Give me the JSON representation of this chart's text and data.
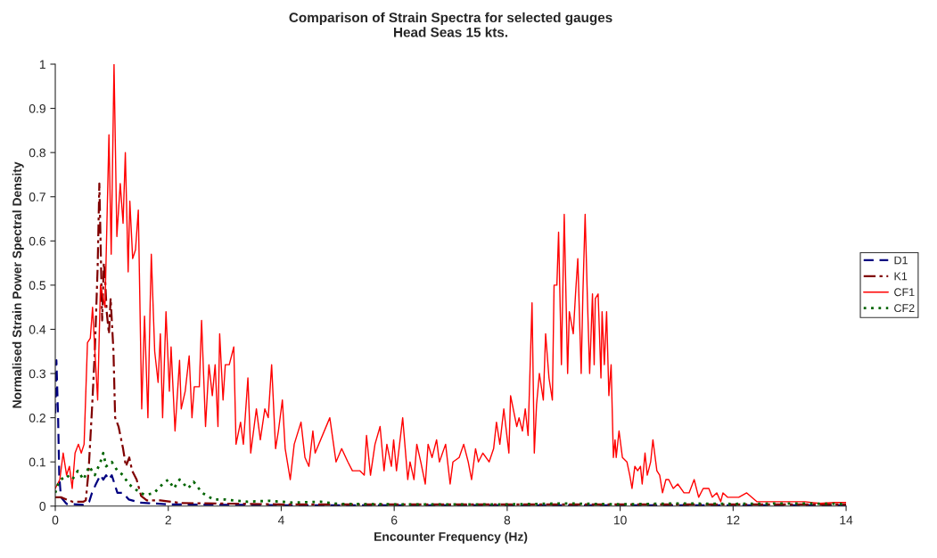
{
  "chart_data": {
    "type": "line",
    "title": "Comparison of Strain Spectra for selected gauges\nHead Seas 15 kts.",
    "xlabel": "Encounter Frequency (Hz)",
    "ylabel": "Normalised Strain Power Spectral Density",
    "xlim": [
      0,
      14
    ],
    "xticks": [
      0,
      2,
      4,
      6,
      8,
      10,
      12,
      14
    ],
    "ylim": [
      0,
      1
    ],
    "yticks": [
      0,
      {
        "value": 0.1,
        "label": "0.1"
      },
      {
        "value": 0.2,
        "label": "0.2"
      },
      {
        "value": 0.3,
        "label": "0.3"
      },
      {
        "value": 0.4,
        "label": "0.4"
      },
      {
        "value": 0.5,
        "label": "0.5"
      },
      {
        "value": 0.6,
        "label": "0.6"
      },
      {
        "value": 0.7,
        "label": "0.7"
      },
      {
        "value": 0.8,
        "label": "0.8"
      },
      {
        "value": 0.9,
        "label": "0.9"
      },
      1
    ],
    "grid": false,
    "legend": "right",
    "marker": "none",
    "series": [
      {
        "name": "D1",
        "color": "#000080",
        "line_style": "dashed",
        "x": [
          0,
          0.02,
          0.05,
          0.07,
          0.1,
          0.2,
          0.5,
          0.6,
          0.65,
          0.72,
          0.8,
          0.85,
          0.9,
          0.95,
          1.0,
          1.05,
          1.1,
          1.2,
          1.3,
          1.5,
          2,
          4,
          6,
          8,
          10,
          12,
          14
        ],
        "values": [
          0.21,
          0.33,
          0.2,
          0.07,
          0.02,
          0.005,
          0.003,
          0.01,
          0.03,
          0.05,
          0.07,
          0.06,
          0.07,
          0.06,
          0.07,
          0.05,
          0.03,
          0.03,
          0.015,
          0.008,
          0.004,
          0.002,
          0.002,
          0.002,
          0.002,
          0.002,
          0.002
        ]
      },
      {
        "name": "K1",
        "color": "#800000",
        "line_style": "dashdot",
        "x": [
          0,
          0.1,
          0.3,
          0.5,
          0.54,
          0.59,
          0.65,
          0.7,
          0.75,
          0.78,
          0.8,
          0.83,
          0.86,
          0.88,
          0.91,
          0.95,
          0.98,
          1.03,
          1.06,
          1.12,
          1.2,
          1.25,
          1.31,
          1.36,
          1.44,
          1.52,
          1.62,
          1.86,
          2.23,
          4,
          6,
          8,
          10,
          12,
          14
        ],
        "values": [
          0.02,
          0.02,
          0.01,
          0.01,
          0.013,
          0.08,
          0.22,
          0.35,
          0.54,
          0.73,
          0.61,
          0.42,
          0.55,
          0.52,
          0.44,
          0.39,
          0.47,
          0.35,
          0.2,
          0.18,
          0.13,
          0.09,
          0.11,
          0.08,
          0.06,
          0.023,
          0.013,
          0.013,
          0.007,
          0.004,
          0.004,
          0.004,
          0.004,
          0.004,
          0.004
        ]
      },
      {
        "name": "CF1",
        "color": "#ff0000",
        "line_style": "solid",
        "x": [
          0,
          0.08,
          0.14,
          0.2,
          0.25,
          0.3,
          0.35,
          0.41,
          0.46,
          0.51,
          0.57,
          0.62,
          0.66,
          0.71,
          0.75,
          0.8,
          0.88,
          0.95,
          0.99,
          1.04,
          1.09,
          1.15,
          1.2,
          1.24,
          1.29,
          1.32,
          1.37,
          1.42,
          1.47,
          1.53,
          1.58,
          1.64,
          1.68,
          1.7,
          1.76,
          1.82,
          1.86,
          1.9,
          1.96,
          2.02,
          2.05,
          2.12,
          2.2,
          2.23,
          2.3,
          2.37,
          2.42,
          2.46,
          2.55,
          2.59,
          2.66,
          2.72,
          2.78,
          2.83,
          2.88,
          2.91,
          2.97,
          3.01,
          3.08,
          3.16,
          3.2,
          3.28,
          3.33,
          3.41,
          3.46,
          3.56,
          3.63,
          3.71,
          3.77,
          3.83,
          3.9,
          3.95,
          4.02,
          4.07,
          4.16,
          4.23,
          4.35,
          4.42,
          4.49,
          4.56,
          4.6,
          4.86,
          4.97,
          5.07,
          5.18,
          5.26,
          5.39,
          5.47,
          5.51,
          5.58,
          5.66,
          5.75,
          5.82,
          5.87,
          5.95,
          5.99,
          6.04,
          6.15,
          6.24,
          6.28,
          6.35,
          6.4,
          6.47,
          6.55,
          6.6,
          6.67,
          6.75,
          6.8,
          6.91,
          6.99,
          7.04,
          7.15,
          7.23,
          7.31,
          7.37,
          7.44,
          7.49,
          7.57,
          7.68,
          7.76,
          7.81,
          7.87,
          7.94,
          8.03,
          8.06,
          8.17,
          8.21,
          8.27,
          8.32,
          8.37,
          8.44,
          8.48,
          8.52,
          8.57,
          8.64,
          8.68,
          8.74,
          8.8,
          8.83,
          8.88,
          8.91,
          8.96,
          9.01,
          9.07,
          9.1,
          9.17,
          9.21,
          9.25,
          9.31,
          9.34,
          9.38,
          9.42,
          9.46,
          9.51,
          9.54,
          9.56,
          9.61,
          9.66,
          9.68,
          9.72,
          9.76,
          9.8,
          9.84,
          9.88,
          9.91,
          9.93,
          9.98,
          10.04,
          10.12,
          10.17,
          10.21,
          10.26,
          10.31,
          10.36,
          10.39,
          10.44,
          10.48,
          10.54,
          10.58,
          10.65,
          10.7,
          10.75,
          10.81,
          10.86,
          10.94,
          11.02,
          11.13,
          11.22,
          11.31,
          11.39,
          11.47,
          11.57,
          11.63,
          11.71,
          11.78,
          11.82,
          11.9,
          11.99,
          12.1,
          12.24,
          12.42,
          12.74,
          12.95,
          13.27,
          13.53,
          13.8,
          14
        ],
        "values": [
          0.04,
          0.06,
          0.12,
          0.07,
          0.09,
          0.04,
          0.12,
          0.14,
          0.12,
          0.14,
          0.37,
          0.38,
          0.45,
          0.33,
          0.24,
          0.5,
          0.45,
          0.84,
          0.57,
          1.0,
          0.61,
          0.73,
          0.64,
          0.8,
          0.53,
          0.69,
          0.56,
          0.58,
          0.67,
          0.22,
          0.43,
          0.2,
          0.46,
          0.57,
          0.35,
          0.28,
          0.39,
          0.2,
          0.44,
          0.26,
          0.36,
          0.17,
          0.33,
          0.22,
          0.26,
          0.34,
          0.2,
          0.27,
          0.27,
          0.42,
          0.18,
          0.32,
          0.25,
          0.32,
          0.18,
          0.39,
          0.24,
          0.32,
          0.32,
          0.36,
          0.14,
          0.19,
          0.14,
          0.29,
          0.12,
          0.22,
          0.15,
          0.22,
          0.2,
          0.32,
          0.13,
          0.17,
          0.24,
          0.13,
          0.06,
          0.14,
          0.19,
          0.11,
          0.09,
          0.17,
          0.12,
          0.2,
          0.1,
          0.13,
          0.1,
          0.08,
          0.08,
          0.07,
          0.16,
          0.07,
          0.14,
          0.18,
          0.08,
          0.14,
          0.09,
          0.15,
          0.08,
          0.2,
          0.06,
          0.1,
          0.06,
          0.14,
          0.1,
          0.05,
          0.14,
          0.11,
          0.15,
          0.1,
          0.14,
          0.05,
          0.1,
          0.11,
          0.14,
          0.1,
          0.06,
          0.13,
          0.1,
          0.12,
          0.1,
          0.13,
          0.19,
          0.14,
          0.22,
          0.12,
          0.25,
          0.18,
          0.2,
          0.17,
          0.22,
          0.16,
          0.46,
          0.12,
          0.23,
          0.3,
          0.24,
          0.39,
          0.29,
          0.24,
          0.5,
          0.5,
          0.62,
          0.32,
          0.66,
          0.3,
          0.44,
          0.39,
          0.48,
          0.56,
          0.3,
          0.48,
          0.66,
          0.47,
          0.3,
          0.48,
          0.32,
          0.47,
          0.48,
          0.29,
          0.44,
          0.32,
          0.44,
          0.25,
          0.32,
          0.11,
          0.15,
          0.11,
          0.17,
          0.11,
          0.1,
          0.07,
          0.04,
          0.09,
          0.08,
          0.09,
          0.05,
          0.12,
          0.07,
          0.1,
          0.15,
          0.08,
          0.07,
          0.03,
          0.06,
          0.06,
          0.04,
          0.05,
          0.03,
          0.03,
          0.06,
          0.02,
          0.04,
          0.04,
          0.02,
          0.03,
          0.01,
          0.03,
          0.02,
          0.02,
          0.02,
          0.03,
          0.01,
          0.01,
          0.01,
          0.01,
          0.006,
          0.008,
          0.008
        ]
      },
      {
        "name": "CF2",
        "color": "#006400",
        "line_style": "dotted",
        "x": [
          0,
          0.05,
          0.1,
          0.2,
          0.3,
          0.4,
          0.5,
          0.6,
          0.7,
          0.8,
          0.85,
          0.9,
          1.0,
          1.1,
          1.2,
          1.3,
          1.4,
          1.5,
          1.6,
          1.75,
          1.9,
          2.0,
          2.1,
          2.2,
          2.35,
          2.45,
          2.6,
          2.8,
          3.0,
          3.4,
          3.8,
          4.2,
          4.7,
          5,
          6,
          8,
          9,
          10,
          11,
          12,
          13,
          14
        ],
        "values": [
          0.03,
          0.05,
          0.06,
          0.07,
          0.06,
          0.08,
          0.06,
          0.09,
          0.07,
          0.1,
          0.12,
          0.09,
          0.1,
          0.08,
          0.07,
          0.05,
          0.04,
          0.03,
          0.025,
          0.03,
          0.05,
          0.06,
          0.04,
          0.06,
          0.04,
          0.055,
          0.03,
          0.015,
          0.015,
          0.01,
          0.012,
          0.008,
          0.01,
          0.005,
          0.004,
          0.004,
          0.006,
          0.004,
          0.006,
          0.005,
          0.006,
          0.005
        ]
      }
    ]
  }
}
